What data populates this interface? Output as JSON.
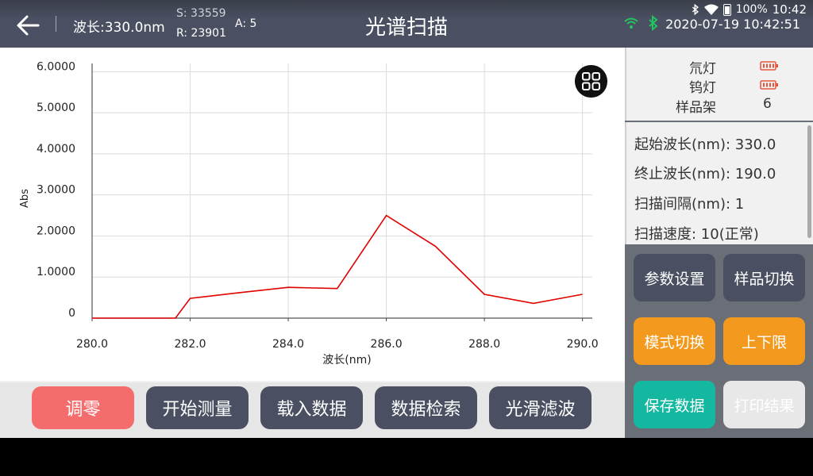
{
  "status": {
    "battery": "100%",
    "time": "10:42"
  },
  "header": {
    "wavelength": "波长:330.0nm",
    "s_value": "S: 33559",
    "r_value": "R: 23901",
    "a_value": "A: 5",
    "title": "光谱扫描",
    "datetime": "2020-07-19 10:42:51"
  },
  "colors": {
    "header_bg": "#4a5061",
    "curve": "#e00000",
    "accent_orange": "#f39a1e",
    "accent_teal": "#14b8a0",
    "zero_red": "#f56c6c",
    "lamp_icon": "#e8553b"
  },
  "chart_data": {
    "type": "line",
    "xlabel": "波长(nm)",
    "ylabel": "Abs",
    "xlim": [
      280,
      290.2
    ],
    "ylim": [
      0,
      6.2
    ],
    "x_ticks": [
      "280.0",
      "282.0",
      "284.0",
      "286.0",
      "288.0",
      "290.0"
    ],
    "y_ticks": [
      "0",
      "1.0000",
      "2.0000",
      "3.0000",
      "4.0000",
      "5.0000",
      "6.0000"
    ],
    "grid": true,
    "series": [
      {
        "x": [
          280,
          281,
          281.7,
          282,
          283,
          284,
          285,
          286,
          287,
          288,
          289,
          290
        ],
        "y": [
          0,
          0,
          0,
          0.48,
          0.62,
          0.75,
          0.72,
          2.5,
          1.75,
          0.58,
          0.36,
          0.58
        ]
      }
    ]
  },
  "lamps": [
    {
      "label": "氘灯",
      "icon": "battery-icon"
    },
    {
      "label": "钨灯",
      "icon": "battery-icon"
    },
    {
      "label": "样品架",
      "value": "6"
    }
  ],
  "params": [
    "起始波长(nm): 330.0",
    "终止波长(nm): 190.0",
    "扫描间隔(nm): 1",
    "扫描速度: 10(正常)"
  ],
  "side_buttons": {
    "param_settings": "参数设置",
    "sample_switch": "样品切换",
    "mode_switch": "模式切换",
    "limits": "上下限",
    "save_data": "保存数据",
    "print_result": "打印结果"
  },
  "bottom_buttons": {
    "zero": "调零",
    "start": "开始测量",
    "load": "载入数据",
    "search": "数据检索",
    "smooth": "光滑滤波"
  }
}
